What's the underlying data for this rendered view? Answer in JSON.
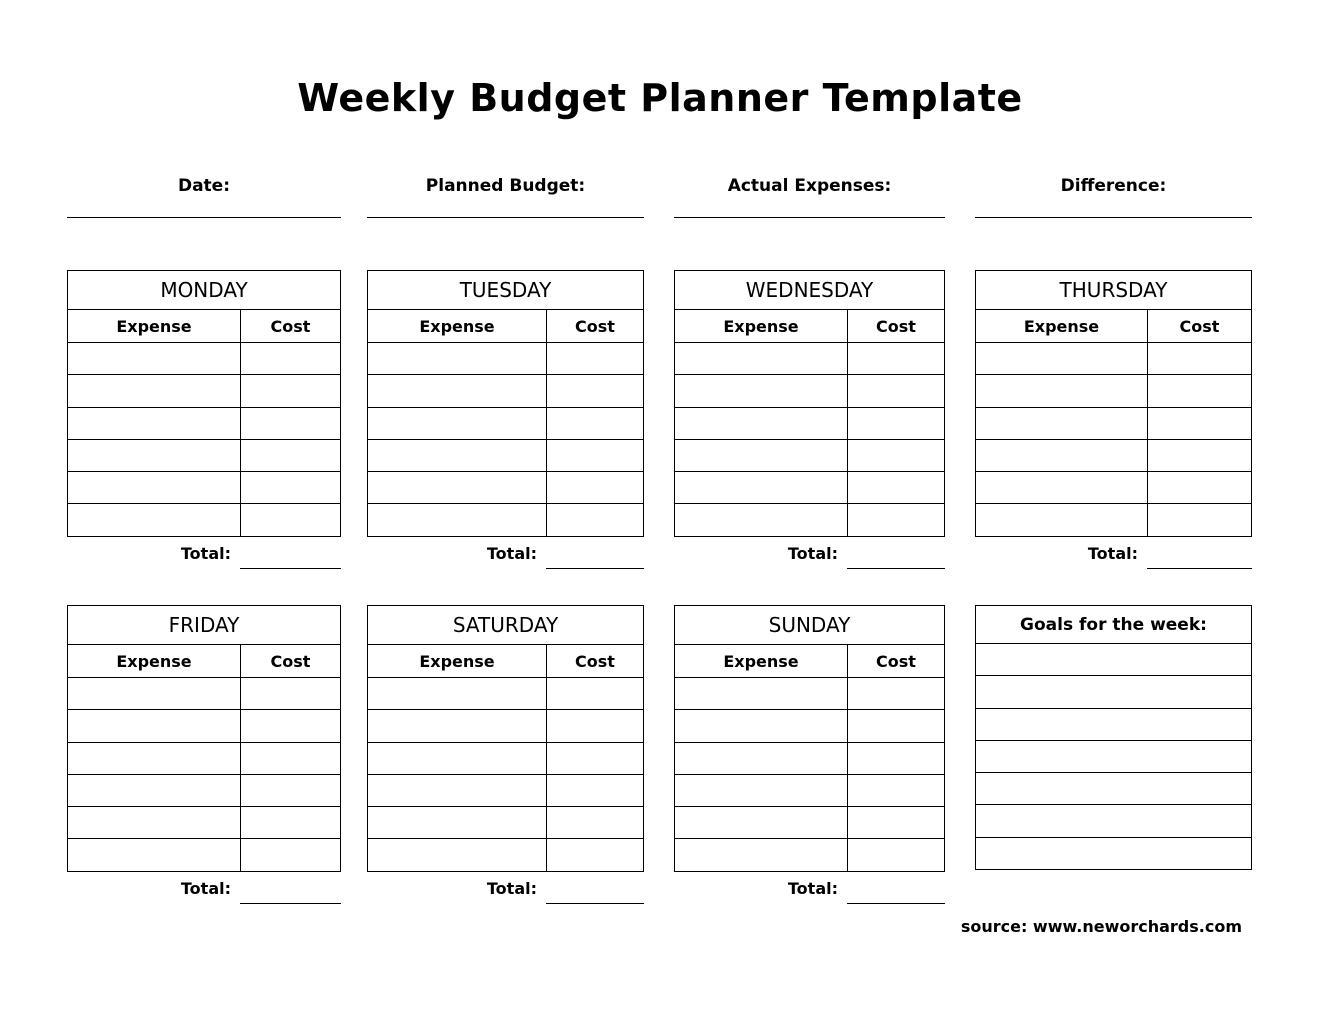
{
  "title": "Weekly Budget Planner Template",
  "summary_fields": [
    {
      "label": "Date:",
      "value": ""
    },
    {
      "label": "Planned Budget:",
      "value": ""
    },
    {
      "label": "Actual Expenses:",
      "value": ""
    },
    {
      "label": "Difference:",
      "value": ""
    }
  ],
  "columns": {
    "expense": "Expense",
    "cost": "Cost"
  },
  "total_label": "Total:",
  "days": [
    {
      "name": "MONDAY"
    },
    {
      "name": "TUESDAY"
    },
    {
      "name": "WEDNESDAY"
    },
    {
      "name": "THURSDAY"
    },
    {
      "name": "FRIDAY"
    },
    {
      "name": "SATURDAY"
    },
    {
      "name": "SUNDAY"
    }
  ],
  "goals": {
    "title": "Goals for the week:"
  },
  "source": "source: www.neworchards.com"
}
